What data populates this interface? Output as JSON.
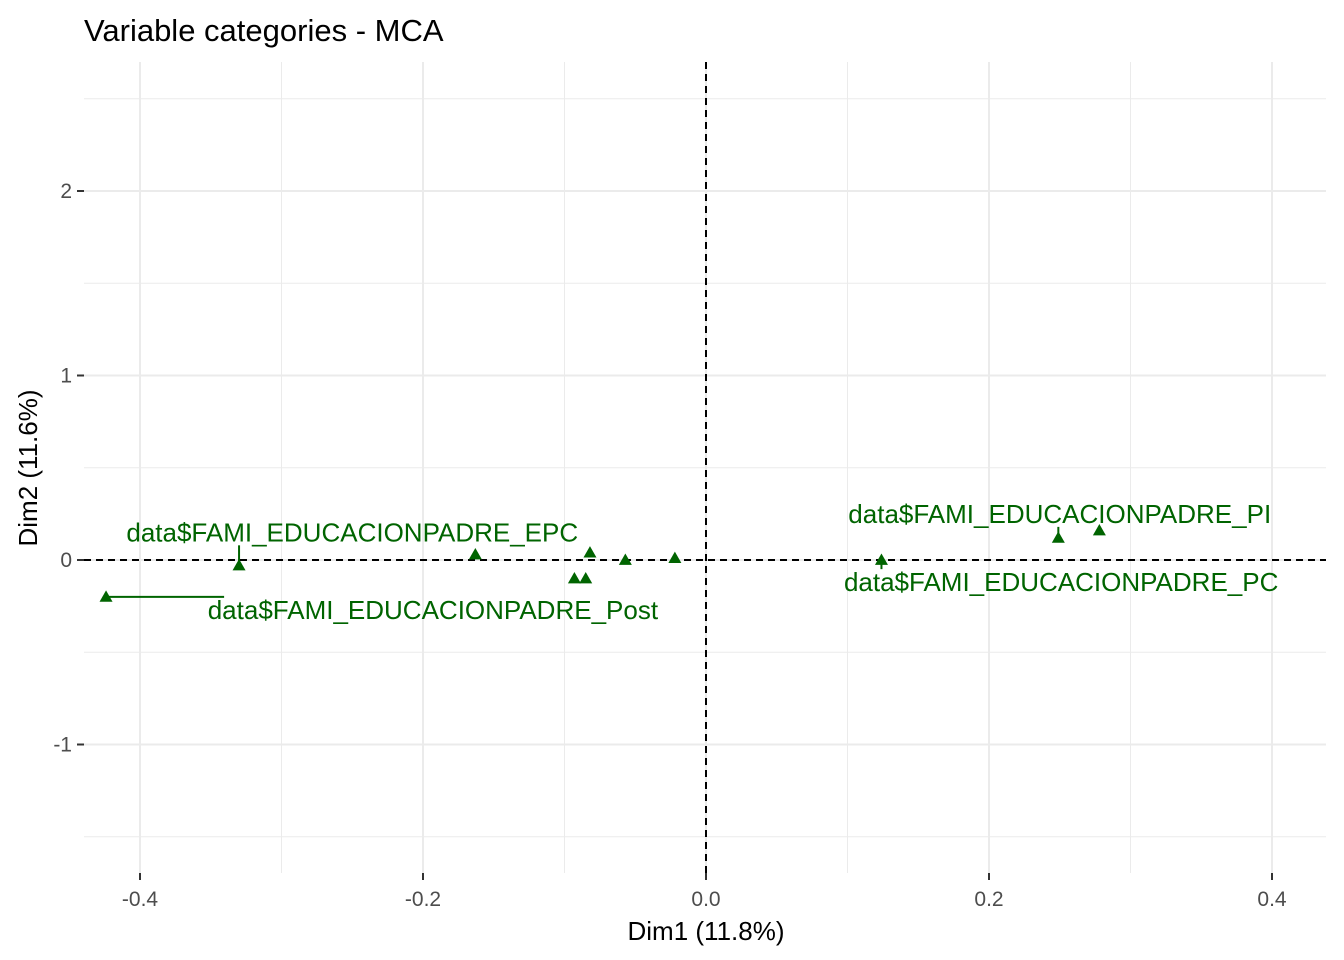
{
  "chart_data": {
    "type": "scatter",
    "title": "Variable categories - MCA",
    "xlabel": "Dim1 (11.8%)",
    "ylabel": "Dim2 (11.6%)",
    "xlim": [
      -0.438,
      0.438
    ],
    "ylim": [
      -1.7,
      2.7
    ],
    "xticks": [
      -0.4,
      -0.2,
      0.0,
      0.2,
      0.4
    ],
    "xtick_labels": [
      "-0.4",
      "-0.2",
      "0.0",
      "0.2",
      "0.4"
    ],
    "yticks": [
      -1,
      0,
      1,
      2
    ],
    "ytick_labels": [
      "-1",
      "0",
      "1",
      "2"
    ],
    "grid": true,
    "reference_lines": {
      "x": 0,
      "y": 0,
      "style": "dashed"
    },
    "marker": "triangle",
    "point_color": "#006400",
    "points": [
      {
        "x": -0.424,
        "y": -0.2,
        "label": "data$FAMI_EDUCACIONPADRE_Post",
        "label_x": -0.193,
        "label_y": -0.27
      },
      {
        "x": -0.33,
        "y": -0.03,
        "label": "data$FAMI_EDUCACIONPADRE_EPC",
        "label_x": -0.25,
        "label_y": 0.15
      },
      {
        "x": -0.163,
        "y": 0.03,
        "label": ""
      },
      {
        "x": -0.093,
        "y": -0.1,
        "label": ""
      },
      {
        "x": -0.085,
        "y": -0.1,
        "label": ""
      },
      {
        "x": -0.082,
        "y": 0.04,
        "label": ""
      },
      {
        "x": -0.057,
        "y": 0.0,
        "label": ""
      },
      {
        "x": -0.022,
        "y": 0.01,
        "label": ""
      },
      {
        "x": 0.124,
        "y": 0.0,
        "label": "data$FAMI_EDUCACIONPADRE_PC",
        "label_x": 0.251,
        "label_y": -0.12
      },
      {
        "x": 0.249,
        "y": 0.12,
        "label": "data$FAMI_EDUCACIONPADRE_PI",
        "label_x": 0.25,
        "label_y": 0.25
      },
      {
        "x": 0.278,
        "y": 0.16,
        "label": ""
      }
    ]
  }
}
